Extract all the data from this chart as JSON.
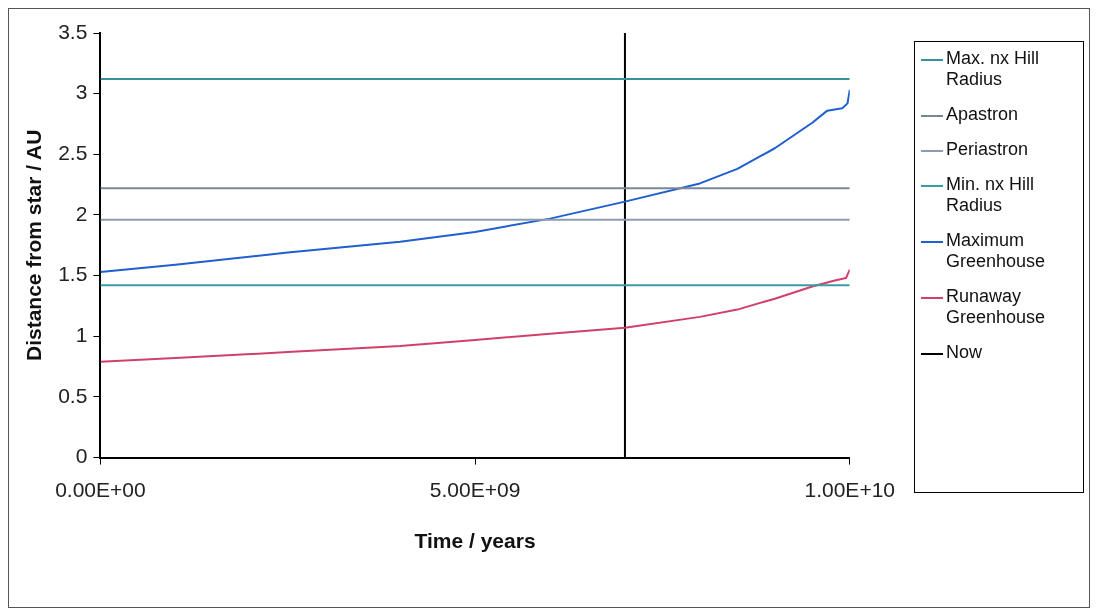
{
  "chart_data": {
    "type": "line",
    "xlabel": "Time / years",
    "ylabel": "Distance from star / AU",
    "xlim": [
      0,
      10000000000
    ],
    "xticks": [
      {
        "value": 0,
        "label": "0.00E+00"
      },
      {
        "value": 5000000000,
        "label": "5.00E+09"
      },
      {
        "value": 10000000000,
        "label": "1.00E+10"
      }
    ],
    "ylim": [
      0,
      3.5
    ],
    "yticks": [
      0,
      0.5,
      1,
      1.5,
      2,
      2.5,
      3,
      3.5
    ],
    "grid": false,
    "legend": "right",
    "marker": "none",
    "line_style": "solid",
    "series": [
      {
        "name": "Max. nx Hill Radius",
        "color": "#3a8f9c",
        "x": [
          0,
          10000000000
        ],
        "values": [
          3.12,
          3.12
        ]
      },
      {
        "name": "Apastron",
        "color": "#7a8896",
        "x": [
          0,
          10000000000
        ],
        "values": [
          2.22,
          2.22
        ]
      },
      {
        "name": "Periastron",
        "color": "#8a9cb0",
        "x": [
          0,
          10000000000
        ],
        "values": [
          1.96,
          1.96
        ]
      },
      {
        "name": "Min. nx Hill Radius",
        "color": "#3a9ca6",
        "x": [
          0,
          10000000000
        ],
        "values": [
          1.42,
          1.42
        ]
      },
      {
        "name": "Maximum Greenhouse",
        "color": "#1f5fcf",
        "x": [
          0,
          1000000000,
          2500000000,
          4000000000,
          5000000000,
          6000000000,
          7000000000,
          8000000000,
          8500000000,
          9000000000,
          9500000000,
          9700000000,
          9900000000,
          9970000000,
          10000000000
        ],
        "values": [
          1.53,
          1.59,
          1.69,
          1.78,
          1.86,
          1.97,
          2.11,
          2.26,
          2.38,
          2.55,
          2.76,
          2.86,
          2.88,
          2.92,
          3.03
        ]
      },
      {
        "name": "Runaway Greenhouse",
        "color": "#d0406a",
        "x": [
          0,
          1000000000,
          2500000000,
          4000000000,
          5000000000,
          6000000000,
          7000000000,
          8000000000,
          8500000000,
          9000000000,
          9500000000,
          9800000000,
          9950000000,
          10000000000
        ],
        "values": [
          0.79,
          0.82,
          0.87,
          0.92,
          0.97,
          1.02,
          1.07,
          1.16,
          1.22,
          1.31,
          1.41,
          1.46,
          1.48,
          1.55
        ]
      },
      {
        "name": "Now",
        "color": "#000000",
        "x": [
          7000000000,
          7000000000
        ],
        "values": [
          0,
          3.5
        ]
      }
    ]
  }
}
